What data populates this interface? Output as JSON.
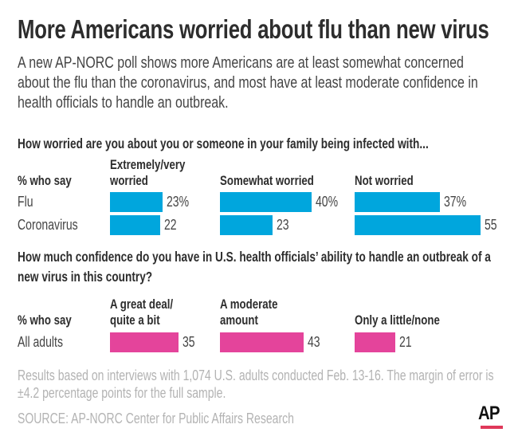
{
  "title": "More Americans worried about flu than new virus",
  "subtitle": "A new AP-NORC poll shows more Americans are at least somewhat concerned about the flu than the coronavirus, and most have at least moderate confidence in health officials to handle an outbreak.",
  "footnote": "Results based on interviews with 1,074 U.S. adults conducted Feb. 13-16. The margin of error is ±4.2 percentage points for the full sample.",
  "source": "SOURCE: AP-NORC Center for Public Affairs Research",
  "logo": "AP",
  "chart_data": [
    {
      "type": "bar",
      "orientation": "horizontal",
      "title": "How worried are you about you or someone in your family being infected with...",
      "row_header": "% who say",
      "color": "#00a6dd",
      "categories": [
        "Extremely/very worried",
        "Somewhat worried",
        "Not worried"
      ],
      "category_lines": [
        [
          "Extremely/very",
          "worried"
        ],
        [
          "",
          "Somewhat worried"
        ],
        [
          "",
          "Not worried"
        ]
      ],
      "rows": [
        {
          "name": "Flu",
          "values": [
            23,
            40,
            37
          ],
          "labels": [
            "23%",
            "40%",
            "37%"
          ]
        },
        {
          "name": "Coronavirus",
          "values": [
            22,
            23,
            55
          ],
          "labels": [
            "22",
            "23",
            "55"
          ]
        }
      ]
    },
    {
      "type": "bar",
      "orientation": "horizontal",
      "title": "How much confidence do you have in U.S. health officials’ ability to handle an outbreak of a new virus in this country?",
      "row_header": "% who say",
      "color": "#e4449b",
      "categories": [
        "A great deal/quite a bit",
        "A moderate amount",
        "Only a little/none"
      ],
      "category_lines": [
        [
          "A great deal/",
          "quite a bit"
        ],
        [
          "A moderate",
          "amount"
        ],
        [
          "",
          "Only a little/none"
        ]
      ],
      "rows": [
        {
          "name": "All adults",
          "values": [
            35,
            43,
            21
          ],
          "labels": [
            "35",
            "43",
            "21"
          ]
        }
      ]
    }
  ]
}
